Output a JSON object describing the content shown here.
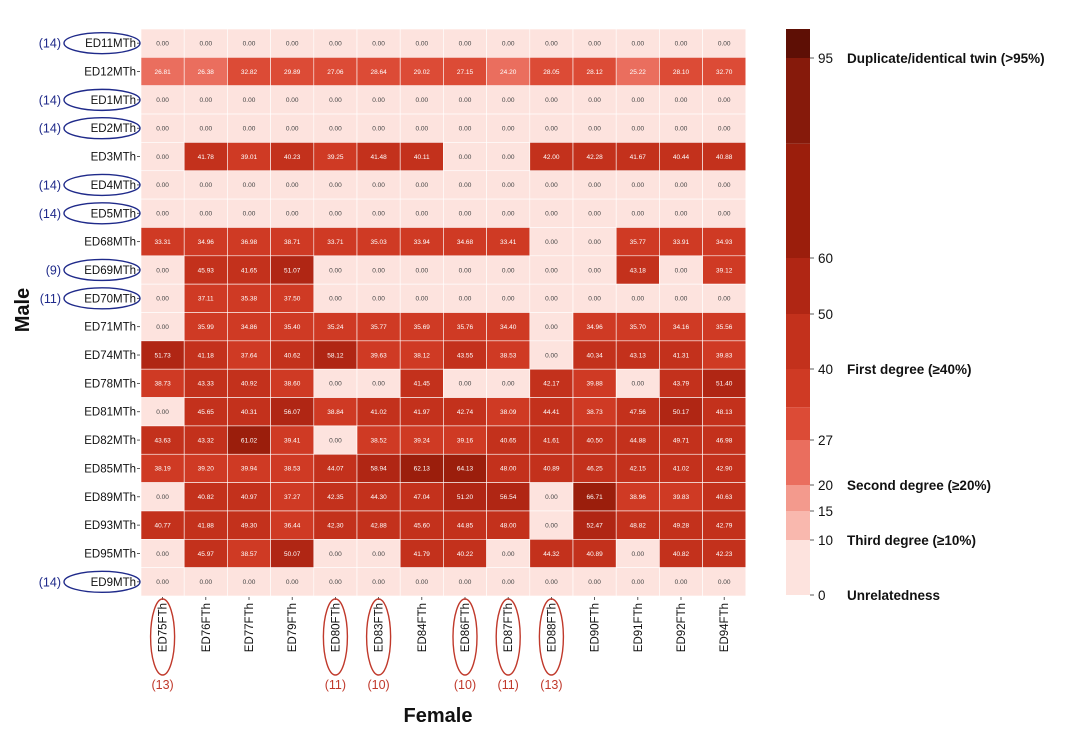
{
  "chart_data": {
    "type": "heatmap",
    "xlabel": "Female",
    "ylabel": "Male",
    "columns": [
      "ED75FTh",
      "ED76FTh",
      "ED77FTh",
      "ED79FTh",
      "ED80FTh",
      "ED83FTh",
      "ED84FTh",
      "ED86FTh",
      "ED87FTh",
      "ED88FTh",
      "ED90FTh",
      "ED91FTh",
      "ED92FTh",
      "ED94FTh"
    ],
    "rows": [
      "ED11MTh",
      "ED12MTh",
      "ED1MTh",
      "ED2MTh",
      "ED3MTh",
      "ED4MTh",
      "ED5MTh",
      "ED68MTh",
      "ED69MTh",
      "ED70MTh",
      "ED71MTh",
      "ED74MTh",
      "ED78MTh",
      "ED81MTh",
      "ED82MTh",
      "ED85MTh",
      "ED89MTh",
      "ED93MTh",
      "ED95MTh",
      "ED9MTh"
    ],
    "values": [
      [
        0,
        0,
        0,
        0,
        0,
        0,
        0,
        0,
        0,
        0,
        0,
        0,
        0,
        0
      ],
      [
        26.81,
        26.38,
        32.82,
        29.89,
        27.06,
        28.64,
        29.02,
        27.15,
        24.2,
        28.05,
        28.12,
        25.22,
        28.1,
        32.7
      ],
      [
        0,
        0,
        0,
        0,
        0,
        0,
        0,
        0,
        0,
        0,
        0,
        0,
        0,
        0
      ],
      [
        0,
        0,
        0,
        0,
        0,
        0,
        0,
        0,
        0,
        0,
        0,
        0,
        0,
        0
      ],
      [
        0,
        41.78,
        39.01,
        40.23,
        39.25,
        41.48,
        40.11,
        0,
        0,
        42.0,
        42.28,
        41.67,
        40.44,
        40.88
      ],
      [
        0,
        0,
        0,
        0,
        0,
        0,
        0,
        0,
        0,
        0,
        0,
        0,
        0,
        0
      ],
      [
        0,
        0,
        0,
        0,
        0,
        0,
        0,
        0,
        0,
        0,
        0,
        0,
        0,
        0
      ],
      [
        33.31,
        34.96,
        36.98,
        38.71,
        33.71,
        35.03,
        33.94,
        34.68,
        33.41,
        0,
        0,
        35.77,
        33.91,
        34.93
      ],
      [
        0,
        45.93,
        41.65,
        51.07,
        0,
        0,
        0,
        0,
        0,
        0,
        0,
        43.18,
        0,
        39.12
      ],
      [
        0,
        37.11,
        35.38,
        37.5,
        0,
        0,
        0,
        0,
        0,
        0,
        0,
        0,
        0,
        0
      ],
      [
        0,
        35.99,
        34.86,
        35.4,
        35.24,
        35.77,
        35.69,
        35.76,
        34.4,
        0,
        34.96,
        35.7,
        34.16,
        35.56
      ],
      [
        51.73,
        41.18,
        37.64,
        40.62,
        58.12,
        39.63,
        38.12,
        43.55,
        38.53,
        0,
        40.34,
        43.13,
        41.31,
        39.83
      ],
      [
        38.73,
        43.33,
        40.92,
        38.6,
        0,
        0,
        41.45,
        0,
        0,
        42.17,
        39.88,
        0,
        43.79,
        51.4
      ],
      [
        0,
        45.65,
        40.31,
        56.07,
        38.84,
        41.02,
        41.97,
        42.74,
        38.09,
        44.41,
        38.73,
        47.56,
        50.17,
        48.13
      ],
      [
        43.63,
        43.32,
        61.02,
        39.41,
        0,
        38.52,
        39.24,
        39.16,
        40.65,
        41.61,
        40.5,
        44.88,
        49.71,
        46.98
      ],
      [
        38.19,
        39.2,
        39.94,
        38.53,
        44.07,
        58.94,
        62.13,
        64.13,
        48.0,
        40.89,
        46.25,
        42.15,
        41.02,
        42.9
      ],
      [
        0,
        40.82,
        40.97,
        37.27,
        42.35,
        44.3,
        47.04,
        51.2,
        56.54,
        0,
        66.71,
        38.96,
        39.83,
        40.63
      ],
      [
        40.77,
        41.88,
        49.3,
        36.44,
        42.3,
        42.88,
        45.6,
        44.85,
        48.0,
        0,
        52.47,
        48.82,
        49.28,
        42.79
      ],
      [
        0,
        45.97,
        38.57,
        50.07,
        0,
        0,
        41.79,
        40.22,
        0,
        44.32,
        40.89,
        0,
        40.82,
        42.23
      ],
      [
        0,
        0,
        0,
        0,
        0,
        0,
        0,
        0,
        0,
        0,
        0,
        0,
        0,
        0
      ]
    ],
    "row_annotations": [
      {
        "row": "ED11MTh",
        "count": "(14)"
      },
      {
        "row": "ED1MTh",
        "count": "(14)"
      },
      {
        "row": "ED2MTh",
        "count": "(14)"
      },
      {
        "row": "ED4MTh",
        "count": "(14)"
      },
      {
        "row": "ED5MTh",
        "count": "(14)"
      },
      {
        "row": "ED69MTh",
        "count": "(9)"
      },
      {
        "row": "ED70MTh",
        "count": "(11)"
      },
      {
        "row": "ED9MTh",
        "count": "(14)"
      }
    ],
    "column_annotations": [
      {
        "column": "ED75FTh",
        "count": "(13)"
      },
      {
        "column": "ED80FTh",
        "count": "(11)"
      },
      {
        "column": "ED83FTh",
        "count": "(10)"
      },
      {
        "column": "ED86FTh",
        "count": "(10)"
      },
      {
        "column": "ED87FTh",
        "count": "(11)"
      },
      {
        "column": "ED88FTh",
        "count": "(13)"
      }
    ],
    "colorbar": {
      "ticks": [
        0,
        10,
        15,
        20,
        27,
        40,
        50,
        60,
        95
      ],
      "bands": [
        {
          "from": 0,
          "to": 10,
          "color": "#fde3de"
        },
        {
          "from": 10,
          "to": 15,
          "color": "#f9b8ae"
        },
        {
          "from": 15,
          "to": 20,
          "color": "#f39a8d"
        },
        {
          "from": 20,
          "to": 27,
          "color": "#ea6e5e"
        },
        {
          "from": 27,
          "to": 33,
          "color": "#dc4b36"
        },
        {
          "from": 33,
          "to": 40,
          "color": "#cf3a24"
        },
        {
          "from": 40,
          "to": 50,
          "color": "#c3311c"
        },
        {
          "from": 50,
          "to": 60,
          "color": "#b02614"
        },
        {
          "from": 60,
          "to": 80,
          "color": "#9b1e0c"
        },
        {
          "from": 80,
          "to": 95,
          "color": "#861a0b"
        },
        {
          "from": 95,
          "to": 100,
          "color": "#5e0f05"
        }
      ],
      "labels": [
        {
          "value": 95,
          "text": "Duplicate/identical twin (>95%)"
        },
        {
          "value": 40,
          "text": "First degree (≥40%)"
        },
        {
          "value": 20,
          "text": "Second degree (≥20%)"
        },
        {
          "value": 10,
          "text": "Third degree (≥10%)"
        },
        {
          "value": 0,
          "text": "Unrelatedness"
        }
      ]
    }
  }
}
